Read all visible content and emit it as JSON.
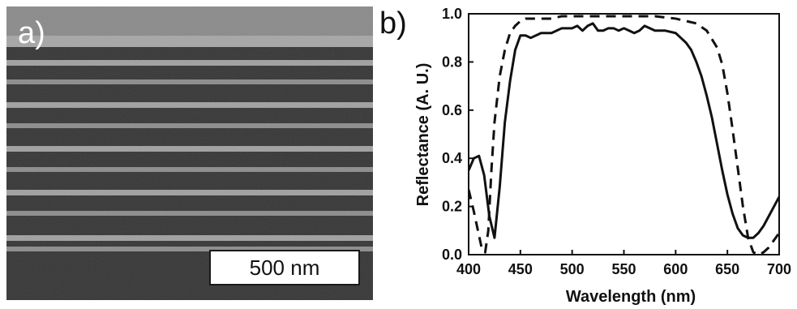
{
  "panel_a": {
    "label": "a)",
    "scale_bar": "500 nm"
  },
  "panel_b": {
    "label": "b)"
  },
  "chart_data": {
    "type": "line",
    "xlabel": "Wavelength (nm)",
    "ylabel": "Reflectance (A. U.)",
    "xlim": [
      400,
      700
    ],
    "ylim": [
      0.0,
      1.0
    ],
    "xticks": [
      400,
      450,
      500,
      550,
      600,
      650,
      700
    ],
    "yticks": [
      "0.0",
      "0.2",
      "0.4",
      "0.6",
      "0.8",
      "1.0"
    ],
    "grid": false,
    "legend": "none",
    "series": [
      {
        "style": "solid",
        "x": [
          400,
          405,
          410,
          415,
          420,
          425,
          430,
          435,
          440,
          445,
          450,
          455,
          460,
          470,
          480,
          490,
          500,
          505,
          510,
          515,
          520,
          525,
          530,
          535,
          540,
          545,
          550,
          555,
          560,
          565,
          570,
          580,
          590,
          600,
          605,
          610,
          615,
          620,
          625,
          630,
          635,
          640,
          645,
          650,
          655,
          660,
          665,
          670,
          675,
          680,
          685,
          690,
          695,
          700
        ],
        "y": [
          0.35,
          0.4,
          0.41,
          0.33,
          0.16,
          0.07,
          0.28,
          0.55,
          0.72,
          0.85,
          0.91,
          0.91,
          0.9,
          0.92,
          0.92,
          0.94,
          0.94,
          0.95,
          0.93,
          0.95,
          0.96,
          0.93,
          0.93,
          0.94,
          0.94,
          0.93,
          0.94,
          0.93,
          0.92,
          0.93,
          0.95,
          0.93,
          0.93,
          0.92,
          0.9,
          0.88,
          0.85,
          0.8,
          0.74,
          0.66,
          0.57,
          0.46,
          0.35,
          0.25,
          0.17,
          0.11,
          0.08,
          0.07,
          0.07,
          0.09,
          0.12,
          0.16,
          0.2,
          0.24
        ]
      },
      {
        "style": "dashed",
        "x": [
          400,
          405,
          410,
          413,
          416,
          419,
          422,
          425,
          430,
          435,
          440,
          445,
          450,
          455,
          460,
          470,
          480,
          490,
          500,
          520,
          540,
          560,
          580,
          600,
          610,
          620,
          630,
          640,
          645,
          650,
          655,
          660,
          665,
          670,
          675,
          680,
          685,
          690,
          695,
          700
        ],
        "y": [
          0.27,
          0.18,
          0.08,
          0.02,
          0.01,
          0.1,
          0.35,
          0.55,
          0.74,
          0.85,
          0.92,
          0.95,
          0.97,
          0.98,
          0.98,
          0.98,
          0.98,
          0.99,
          0.99,
          0.99,
          0.99,
          0.99,
          0.99,
          0.98,
          0.97,
          0.96,
          0.93,
          0.86,
          0.79,
          0.67,
          0.52,
          0.36,
          0.2,
          0.07,
          0.01,
          0.0,
          0.01,
          0.03,
          0.06,
          0.09
        ]
      }
    ]
  }
}
